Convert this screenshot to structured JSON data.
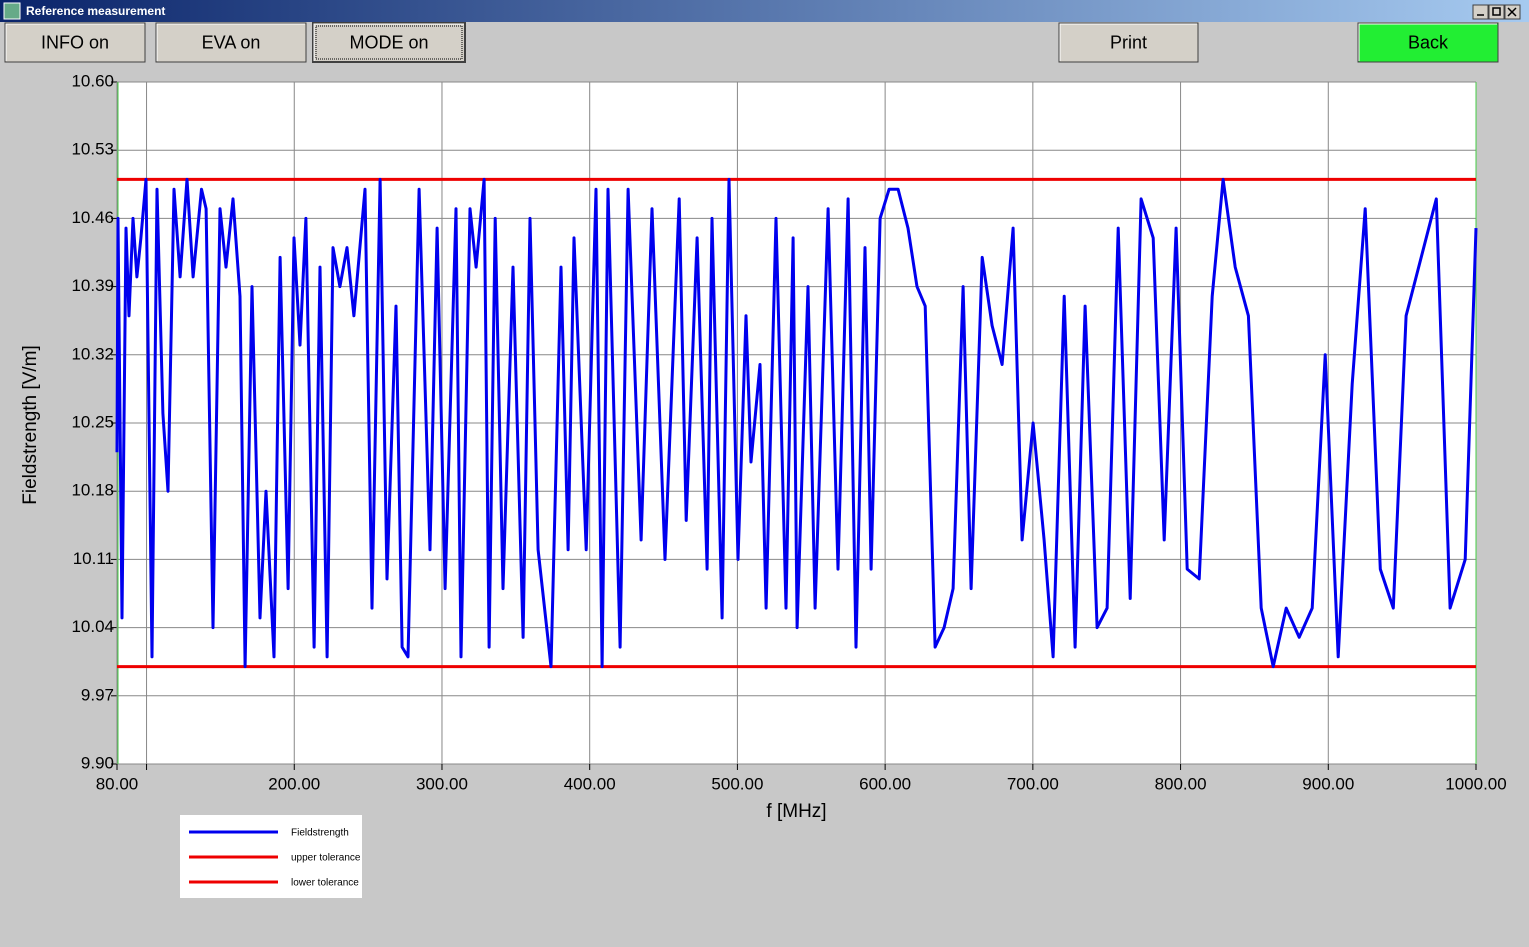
{
  "window": {
    "title": "Reference measurement"
  },
  "toolbar": {
    "buttons": [
      "INFO on",
      "EVA on",
      "MODE on",
      "Print",
      "Back"
    ]
  },
  "chart_data": {
    "type": "line",
    "xlabel": "f [MHz]",
    "ylabel": "Fieldstrength [V/m]",
    "xlim": [
      80,
      1000
    ],
    "ylim": [
      9.9,
      10.6
    ],
    "xticks": [
      {
        "value": 80,
        "label": "80.00"
      },
      {
        "value": 100,
        "label": null
      },
      {
        "value": 200,
        "label": "200.00"
      },
      {
        "value": 300,
        "label": "300.00"
      },
      {
        "value": 400,
        "label": "400.00"
      },
      {
        "value": 500,
        "label": "500.00"
      },
      {
        "value": 600,
        "label": "600.00"
      },
      {
        "value": 700,
        "label": "700.00"
      },
      {
        "value": 800,
        "label": "800.00"
      },
      {
        "value": 900,
        "label": "900.00"
      },
      {
        "value": 1000,
        "label": "1000.00"
      }
    ],
    "yticks": [
      {
        "value": 9.9,
        "label": "9.90"
      },
      {
        "value": 9.97,
        "label": "9.97"
      },
      {
        "value": 10.04,
        "label": "10.04"
      },
      {
        "value": 10.11,
        "label": "10.11"
      },
      {
        "value": 10.18,
        "label": "10.18"
      },
      {
        "value": 10.25,
        "label": "10.25"
      },
      {
        "value": 10.32,
        "label": "10.32"
      },
      {
        "value": 10.39,
        "label": "10.39"
      },
      {
        "value": 10.46,
        "label": "10.46"
      },
      {
        "value": 10.53,
        "label": "10.53"
      },
      {
        "value": 10.6,
        "label": "10.60"
      }
    ],
    "grid": true,
    "legend": "bottom-left",
    "series": [
      {
        "name": "Fieldstrength",
        "color": "#0000ee",
        "x": [
          80,
          80.7,
          83.4,
          86.1,
          88.1,
          90.8,
          93.5,
          96.2,
          99.6,
          103.7,
          107.1,
          111.1,
          114.5,
          118.6,
          122.7,
          127.4,
          131.5,
          137.2,
          140.3,
          145,
          149.7,
          153.8,
          158.5,
          163.3,
          166.7,
          171.4,
          176.8,
          180.9,
          186.3,
          190.4,
          195.8,
          199.8,
          203.9,
          207.9,
          213.4,
          217.4,
          222.2,
          226.2,
          230.9,
          235.7,
          240.4,
          247.9,
          252.6,
          258.1,
          262.8,
          268.9,
          273,
          277,
          284.5,
          291.9,
          296.7,
          302.1,
          309.5,
          312.9,
          319,
          323.1,
          328.5,
          331.9,
          336,
          341.3,
          348.1,
          354.9,
          359.6,
          365.1,
          373.8,
          380.6,
          385.4,
          389.4,
          397.6,
          404.3,
          408.4,
          412.4,
          420.6,
          426,
          434.8,
          442.2,
          451,
          460.6,
          465.3,
          472.7,
          479.5,
          482.8,
          489.6,
          494.3,
          500.4,
          505.8,
          509.2,
          515.3,
          519.4,
          526.1,
          532.9,
          537.7,
          540.4,
          547.8,
          552.6,
          561.4,
          568.1,
          574.9,
          580.3,
          586.4,
          590.5,
          596.6,
          602.7,
          608.8,
          615.5,
          621.6,
          627.1,
          633.8,
          639.9,
          646,
          652.8,
          658.2,
          665.7,
          672.4,
          679.2,
          686.6,
          692.7,
          700.2,
          707.6,
          713.7,
          721.2,
          728.6,
          735.4,
          743.5,
          750.3,
          757.8,
          765.9,
          773.3,
          781.5,
          788.9,
          797,
          804.5,
          812.6,
          821.4,
          828.8,
          837,
          845.9,
          854.6,
          862.7,
          871.5,
          880.3,
          889.1,
          897.9,
          906.7,
          916.2,
          925,
          935.2,
          944,
          952.7,
          973.1,
          982.5,
          992.7,
          1000
        ],
        "values": [
          10.22,
          10.46,
          10.05,
          10.45,
          10.36,
          10.46,
          10.4,
          10.44,
          10.5,
          10.01,
          10.49,
          10.26,
          10.18,
          10.49,
          10.4,
          10.5,
          10.4,
          10.49,
          10.47,
          10.04,
          10.47,
          10.41,
          10.48,
          10.38,
          10,
          10.39,
          10.05,
          10.18,
          10.01,
          10.42,
          10.08,
          10.44,
          10.33,
          10.46,
          10.02,
          10.41,
          10.01,
          10.43,
          10.39,
          10.43,
          10.36,
          10.49,
          10.06,
          10.5,
          10.09,
          10.37,
          10.02,
          10.01,
          10.49,
          10.12,
          10.45,
          10.08,
          10.47,
          10.01,
          10.47,
          10.41,
          10.5,
          10.02,
          10.46,
          10.08,
          10.41,
          10.03,
          10.46,
          10.12,
          10,
          10.41,
          10.12,
          10.44,
          10.12,
          10.49,
          10,
          10.49,
          10.02,
          10.49,
          10.13,
          10.47,
          10.11,
          10.48,
          10.15,
          10.44,
          10.1,
          10.46,
          10.05,
          10.5,
          10.11,
          10.36,
          10.21,
          10.31,
          10.06,
          10.46,
          10.06,
          10.44,
          10.04,
          10.39,
          10.06,
          10.47,
          10.1,
          10.48,
          10.02,
          10.43,
          10.1,
          10.46,
          10.49,
          10.49,
          10.45,
          10.39,
          10.37,
          10.02,
          10.04,
          10.08,
          10.39,
          10.08,
          10.42,
          10.35,
          10.31,
          10.45,
          10.13,
          10.25,
          10.13,
          10.01,
          10.38,
          10.02,
          10.37,
          10.04,
          10.06,
          10.45,
          10.07,
          10.48,
          10.44,
          10.13,
          10.45,
          10.1,
          10.09,
          10.38,
          10.5,
          10.41,
          10.36,
          10.06,
          10,
          10.06,
          10.03,
          10.06,
          10.32,
          10.01,
          10.29,
          10.47,
          10.1,
          10.06,
          10.36,
          10.48,
          10.06,
          10.11,
          10.45
        ]
      },
      {
        "name": "upper tolerance",
        "color": "#ee0000",
        "x": [
          80,
          1000
        ],
        "values": [
          10.5,
          10.5
        ]
      },
      {
        "name": "lower tolerance",
        "color": "#ee0000",
        "x": [
          80,
          1000
        ],
        "values": [
          10.0,
          10.0
        ]
      }
    ]
  }
}
